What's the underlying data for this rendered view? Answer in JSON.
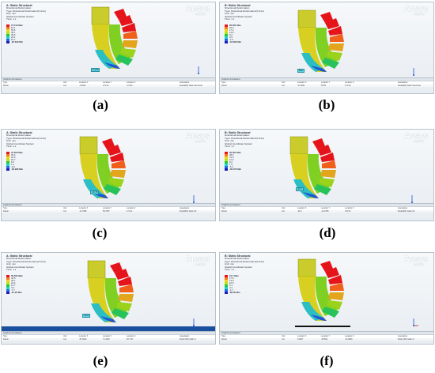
{
  "product": {
    "name": "Ansys",
    "version": "2022 R1"
  },
  "panels": [
    {
      "caption": "(a)",
      "header": [
        "A: Static Structural",
        "Directional Deformation",
        "Type: Directional Deformation(X Axis)",
        "Unit: mm",
        "Global Coordinate System",
        "Time: 1 s"
      ],
      "legend": [
        "73.513 Max",
        "64.1",
        "54.6",
        "45.1",
        "35.6",
        "26.1",
        "16.7",
        "-26.649 Min"
      ],
      "annotation": "-2.146",
      "table": {
        "tab": "Graphics Annotations",
        "head": [
          "Type",
          "Unit",
          "Location X",
          "Location Y",
          "Location Z",
          "Association"
        ],
        "row": [
          "Result",
          "mm",
          "-1.6629",
          "171.26",
          "171.50",
          "Model(B4) Static Structural"
        ]
      }
    },
    {
      "caption": "(b)",
      "header": [
        "B: Static Structural",
        "Directional Deformation",
        "Type: Directional Deformation(X Axis)",
        "Unit: mm",
        "Global Coordinate System",
        "Time: 1 s"
      ],
      "legend": [
        "26.651 Max",
        "22.0",
        "17.4",
        "12.8",
        "8.2",
        "3.6",
        "-1.0",
        "-18.393 Min"
      ],
      "annotation": "Max",
      "table": {
        "tab": "Graphics Annotations",
        "head": [
          "Type",
          "Unit",
          "Location X",
          "Location Y",
          "Location Z",
          "Association"
        ],
        "row": [
          "Result",
          "mm",
          "-11.3664",
          "56.55",
          "171.50",
          "Model(B4) Static Structural"
        ]
      }
    },
    {
      "caption": "(c)",
      "header": [
        "A: Static Structural",
        "Directional Deformation",
        "Type: Directional Deformation(X Axis)",
        "Unit: mm",
        "Global Coordinate System",
        "Time: 1 s"
      ],
      "legend": [
        "37.653 Max",
        "30.3",
        "23.0",
        "15.7",
        "8.4",
        "1.1",
        "-6.2",
        "-36.936 Min"
      ],
      "annotation": "-21.75",
      "table": {
        "tab": "Graphics Annotations",
        "head": [
          "Type",
          "Unit",
          "Location X",
          "Location Y",
          "Location Z",
          "Association"
        ],
        "row": [
          "Result",
          "mm",
          "-13.7986",
          "56.3787",
          "171.21",
          "Model(B4) Static Str"
        ]
      }
    },
    {
      "caption": "(d)",
      "header": [
        "B: Static Structural",
        "Directional Deformation",
        "Type: Directional Deformation(X Axis)",
        "Unit: mm",
        "Global Coordinate System",
        "Time: 1 s"
      ],
      "legend": [
        "35.001 Max",
        "28.3",
        "21.6",
        "14.9",
        "8.2",
        "1.5",
        "-5.2",
        "-36.155 Min"
      ],
      "annotation": "-31.7",
      "table": {
        "tab": "Graphics Annotations",
        "head": [
          "Type",
          "Unit",
          "Location X",
          "Location Y",
          "Location Z",
          "Association"
        ],
        "row": [
          "Result",
          "mm",
          "-32.3",
          "-24.2785",
          "170.03",
          "Model(B4) Static Str"
        ]
      }
    },
    {
      "caption": "(e)",
      "header": [
        "A: Static Structural",
        "Directional Deformation",
        "Type: Directional Deformation(X Axis)",
        "Unit: mm",
        "Global Coordinate System",
        "Time: 1 s"
      ],
      "legend": [
        "56.502 Max",
        "45.8",
        "35.1",
        "24.4",
        "13.7",
        "3.0",
        "-7.7",
        "-67.25 Min"
      ],
      "annotation": "-40.9",
      "table": {
        "tab": "Graphics Annotations",
        "head": [
          "Type",
          "Unit",
          "Location X",
          "Location Y",
          "Location Z",
          "Association"
        ],
        "row": [
          "Result",
          "mm",
          "-51.5624",
          "71.4403",
          "26.7727",
          "Model (B4) Static S"
        ]
      }
    },
    {
      "caption": "(f)",
      "header": [
        "B: Static Structural",
        "Directional Deformation",
        "Type: Directional Deformation(X Axis)",
        "Unit: mm",
        "Global Coordinate System",
        "Time: 1 s"
      ],
      "legend": [
        "21.7 Max",
        "17.8",
        "13.9",
        "10.0",
        "6.1",
        "2.2",
        "-1.7",
        "-86.35 Min"
      ],
      "annotation": "",
      "table": {
        "tab": "Graphics Annotations",
        "head": [
          "Type",
          "Unit",
          "Location X",
          "Location Y",
          "Location Z",
          "Association"
        ],
        "row": [
          "Result",
          "mm",
          "8.4997",
          "-8.5604",
          "-44.0099",
          "Model (B4) Static S"
        ]
      }
    }
  ]
}
